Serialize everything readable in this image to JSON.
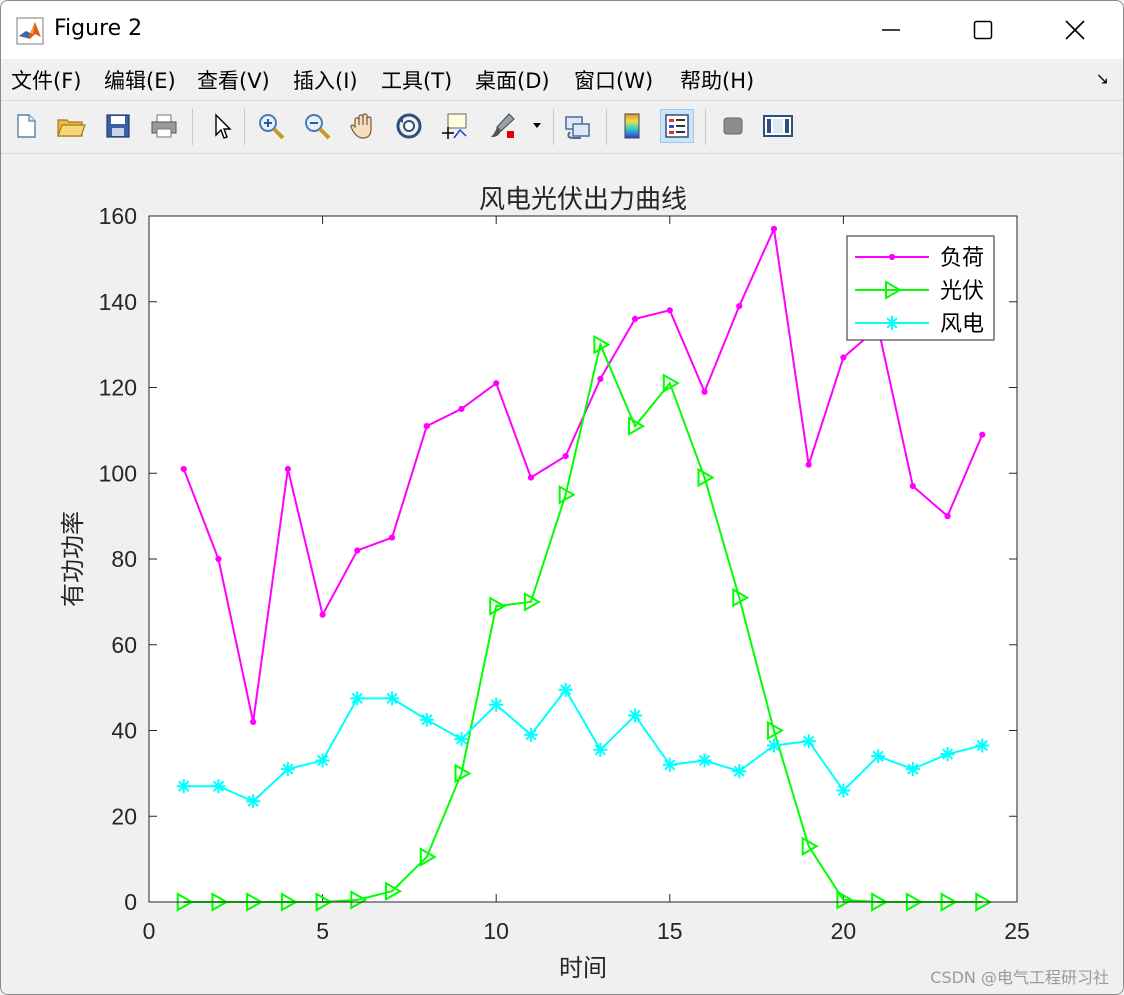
{
  "window": {
    "title": "Figure 2",
    "minimize_label": "—",
    "maximize_label": "☐",
    "close_label": "✕"
  },
  "menubar": {
    "items": [
      "文件(F)",
      "编辑(E)",
      "查看(V)",
      "插入(I)",
      "工具(T)",
      "桌面(D)",
      "窗口(W)",
      "帮助(H)"
    ],
    "dock_arrow": "↘"
  },
  "toolbar": {
    "icons": [
      "new-figure-icon",
      "open-folder-icon",
      "save-icon",
      "print-icon",
      "pointer-icon",
      "zoom-in-icon",
      "zoom-out-icon",
      "pan-hand-icon",
      "rotate-3d-icon",
      "data-cursor-icon",
      "brush-icon",
      "link-plot-icon",
      "colorbar-icon",
      "legend-icon",
      "hide-plot-tools-icon",
      "show-plot-tools-icon"
    ]
  },
  "colors": {
    "load": "#ff00ff",
    "pv": "#00ff00",
    "wind": "#00ffff",
    "axes_bg": "#ffffff",
    "figure_bg": "#f0f0f0"
  },
  "chart_data": {
    "type": "line",
    "title": "风电光伏出力曲线",
    "xlabel": "时间",
    "ylabel": "有功功率",
    "xlim": [
      0,
      25
    ],
    "ylim": [
      0,
      160
    ],
    "xticks": [
      0,
      5,
      10,
      15,
      20,
      25
    ],
    "yticks": [
      0,
      20,
      40,
      60,
      80,
      100,
      120,
      140,
      160
    ],
    "grid": false,
    "legend_position": "top-right",
    "x": [
      1,
      2,
      3,
      4,
      5,
      6,
      7,
      8,
      9,
      10,
      11,
      12,
      13,
      14,
      15,
      16,
      17,
      18,
      19,
      20,
      21,
      22,
      23,
      24
    ],
    "series": [
      {
        "name": "负荷",
        "marker": "dot",
        "values": [
          101,
          80,
          42,
          101,
          67,
          82,
          85,
          111,
          115,
          121,
          99,
          104,
          122,
          136,
          138,
          119,
          139,
          157,
          102,
          127,
          134,
          97,
          90,
          109
        ]
      },
      {
        "name": "光伏",
        "marker": "triangle-right",
        "values": [
          0,
          0,
          0,
          0,
          0,
          0.5,
          2.5,
          10.5,
          30,
          69,
          70,
          95,
          130,
          111,
          121,
          99,
          71,
          40,
          13,
          0.5,
          0,
          0,
          0,
          0
        ]
      },
      {
        "name": "风电",
        "marker": "asterisk",
        "values": [
          27,
          27,
          23.5,
          31,
          33,
          47.5,
          47.5,
          42.5,
          38,
          46,
          39,
          49.5,
          35.5,
          43.5,
          32,
          33,
          30.5,
          36.5,
          37.5,
          26,
          34,
          31,
          34.5,
          36.5
        ]
      }
    ]
  },
  "watermark": "CSDN @电气工程研习社"
}
